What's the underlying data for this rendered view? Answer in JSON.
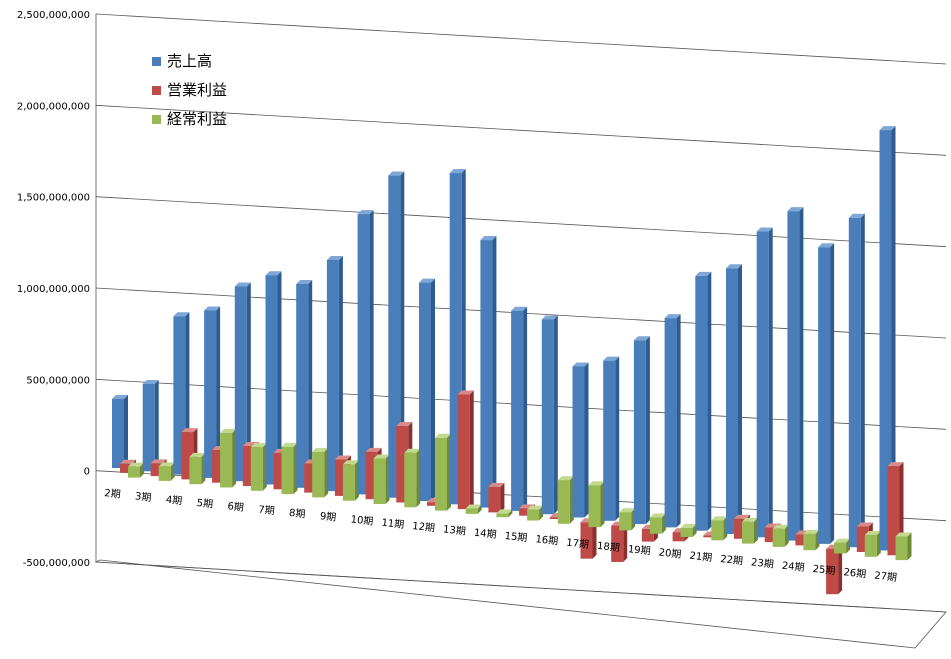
{
  "chart_data": {
    "type": "bar",
    "title": "",
    "xlabel": "",
    "ylabel": "",
    "ylim": [
      -500000000,
      2500000000
    ],
    "yticks": [
      "2,500,000,000",
      "2,000,000,000",
      "1,500,000,000",
      "1,000,000,000",
      "500,000,000",
      "0",
      "-500,000,000"
    ],
    "legend_position": "top-left",
    "grid": true,
    "categories": [
      "2期",
      "3期",
      "4期",
      "5期",
      "6期",
      "7期",
      "8期",
      "9期",
      "10期",
      "11期",
      "12期",
      "13期",
      "14期",
      "15期",
      "16期",
      "17期",
      "18期",
      "19期",
      "20期",
      "21期",
      "22期",
      "23期",
      "24期",
      "25期",
      "26期",
      "27期"
    ],
    "series": [
      {
        "name": "売上高",
        "color": "#4A7EBB",
        "values": [
          380000000,
          480000000,
          870000000,
          920000000,
          1070000000,
          1150000000,
          1120000000,
          1270000000,
          1540000000,
          1770000000,
          1200000000,
          1820000000,
          1470000000,
          1100000000,
          1070000000,
          830000000,
          880000000,
          1010000000,
          1150000000,
          1400000000,
          1460000000,
          1680000000,
          1810000000,
          1630000000,
          1810000000,
          2310000000
        ],
        "value_key": "sales"
      },
      {
        "name": "営業利益",
        "color": "#BE4B48",
        "values": [
          50000000,
          70000000,
          260000000,
          180000000,
          220000000,
          200000000,
          160000000,
          200000000,
          260000000,
          420000000,
          20000000,
          630000000,
          140000000,
          40000000,
          10000000,
          -200000000,
          -200000000,
          -70000000,
          -50000000,
          -10000000,
          110000000,
          80000000,
          60000000,
          -250000000,
          140000000,
          490000000
        ]
      },
      {
        "name": "経常利益",
        "color": "#98B954",
        "values": [
          60000000,
          80000000,
          150000000,
          300000000,
          240000000,
          260000000,
          250000000,
          200000000,
          250000000,
          300000000,
          400000000,
          30000000,
          20000000,
          60000000,
          240000000,
          230000000,
          100000000,
          90000000,
          50000000,
          110000000,
          120000000,
          100000000,
          90000000,
          60000000,
          120000000,
          130000000
        ]
      }
    ]
  }
}
